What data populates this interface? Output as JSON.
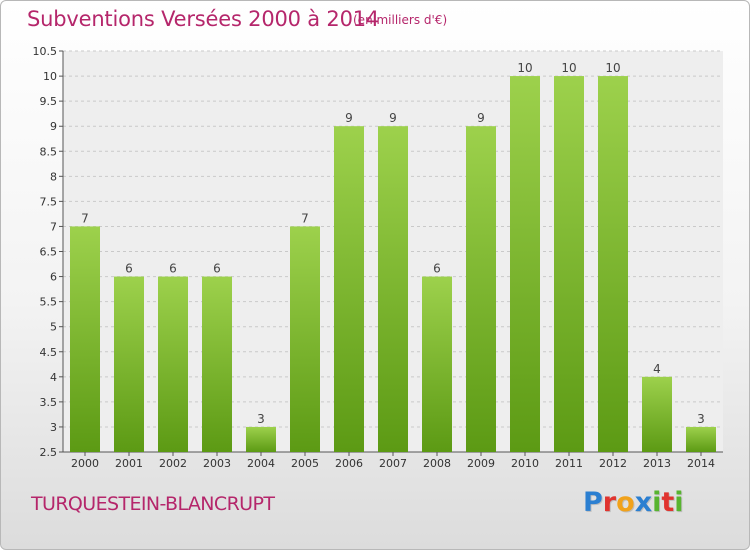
{
  "title": "Subventions Versées 2000 à 2014",
  "subtitle": "(en milliers d'€)",
  "commune": "TURQUESTEIN-BLANCRUPT",
  "logo": {
    "letters": [
      "P",
      "r",
      "o",
      "x",
      "i",
      "t",
      "i"
    ],
    "colors": [
      "#2b7fd1",
      "#e0342f",
      "#f1a21b",
      "#2b7fd1",
      "#58b430",
      "#e0342f",
      "#58b430"
    ]
  },
  "colors": {
    "bar_top": "#9dd14c",
    "bar_bottom": "#5c9a14",
    "title": "#b5266b"
  },
  "chart_data": {
    "type": "bar",
    "categories": [
      "2000",
      "2001",
      "2002",
      "2003",
      "2004",
      "2005",
      "2006",
      "2007",
      "2008",
      "2009",
      "2010",
      "2011",
      "2012",
      "2013",
      "2014"
    ],
    "values": [
      7,
      6,
      6,
      6,
      3,
      7,
      9,
      9,
      6,
      9,
      10,
      10,
      10,
      4,
      3
    ],
    "ylim": [
      2.5,
      10.5
    ],
    "yticks": [
      "2.5",
      "3",
      "3.5",
      "4",
      "4.5",
      "5",
      "5.5",
      "6",
      "6.5",
      "7",
      "7.5",
      "8",
      "8.5",
      "9",
      "9.5",
      "10",
      "10.5"
    ],
    "grid": true
  }
}
